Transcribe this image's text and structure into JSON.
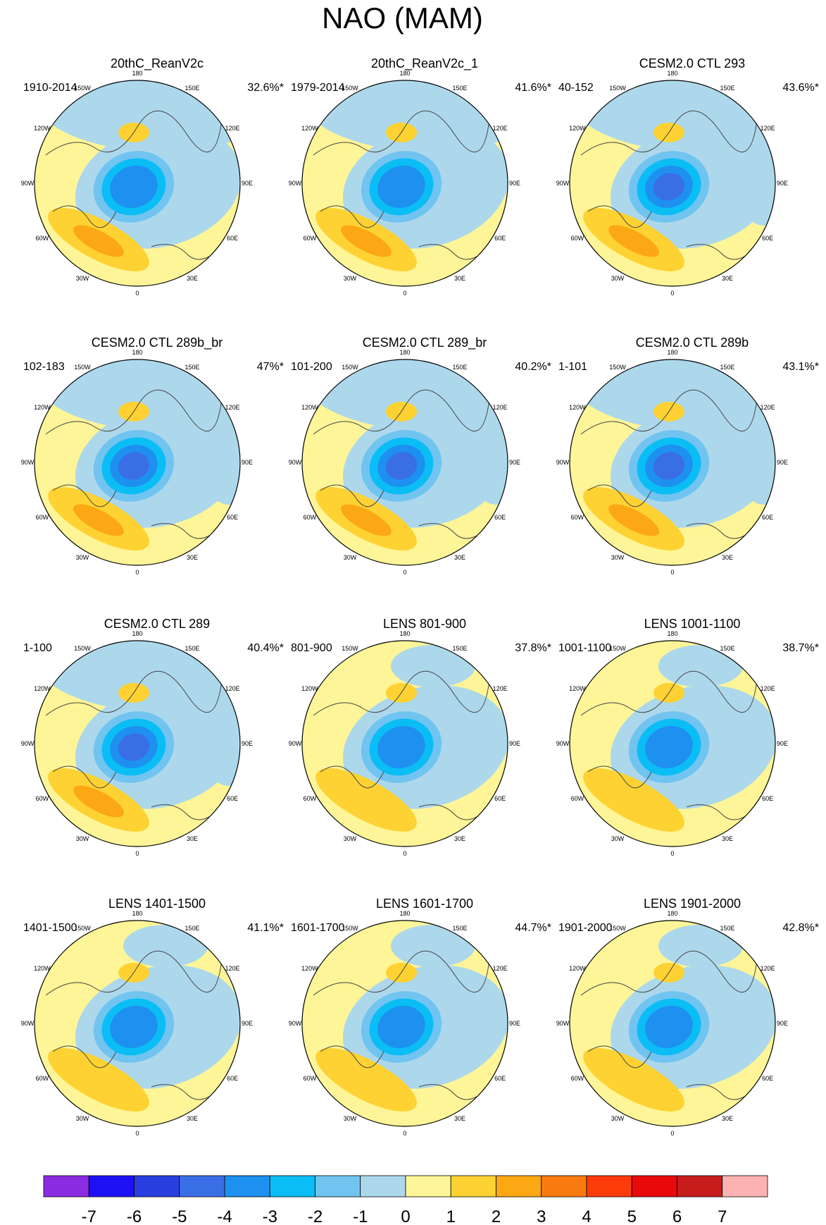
{
  "title": "NAO (MAM)",
  "palette": [
    "#8b2be2",
    "#1e10f5",
    "#2a3fe0",
    "#3a6ee6",
    "#1d90f0",
    "#0bbdf5",
    "#72c4f0",
    "#add8ec",
    "#fdf597",
    "#fed232",
    "#fca714",
    "#f97a0f",
    "#fb3b0a",
    "#e80a0a",
    "#c71c1c",
    "#fcb2b2"
  ],
  "levels": [
    "-7",
    "-6",
    "-5",
    "-4",
    "-3",
    "-2",
    "-1",
    "0",
    "1",
    "2",
    "3",
    "4",
    "5",
    "6",
    "7"
  ],
  "lon_labels": {
    "top": "180",
    "bottom": "0",
    "upper_left": "150W",
    "upper_right": "150E",
    "left_upper": "120W",
    "right_upper": "120E",
    "left": "90W",
    "right": "90E",
    "left_lower": "60W",
    "right_lower": "60E",
    "lower_left": "30W",
    "lower_right": "30E"
  },
  "panels": [
    {
      "title": "20thC_ReanV2c",
      "period": "1910-2014",
      "pct": "32.6%*",
      "pattern": "reanalysis"
    },
    {
      "title": "20thC_ReanV2c_1",
      "period": "1979-2014",
      "pct": "41.6%*",
      "pattern": "reanalysis"
    },
    {
      "title": "CESM2.0 CTL 293",
      "period": "40-152",
      "pct": "43.6%*",
      "pattern": "strong"
    },
    {
      "title": "CESM2.0 CTL 289b_br",
      "period": "102-183",
      "pct": "47%*",
      "pattern": "strong"
    },
    {
      "title": "CESM2.0 CTL 289_br",
      "period": "101-200",
      "pct": "40.2%*",
      "pattern": "strong"
    },
    {
      "title": "CESM2.0 CTL 289b",
      "period": "1-101",
      "pct": "43.1%*",
      "pattern": "strong"
    },
    {
      "title": "CESM2.0 CTL 289",
      "period": "1-100",
      "pct": "40.4%*",
      "pattern": "strong"
    },
    {
      "title": "LENS 801-900",
      "period": "801-900",
      "pct": "37.8%*",
      "pattern": "lens"
    },
    {
      "title": "LENS 1001-1100",
      "period": "1001-1100",
      "pct": "38.7%*",
      "pattern": "lens"
    },
    {
      "title": "LENS 1401-1500",
      "period": "1401-1500",
      "pct": "41.1%*",
      "pattern": "lens"
    },
    {
      "title": "LENS 1601-1700",
      "period": "1601-1700",
      "pct": "44.7%*",
      "pattern": "lens"
    },
    {
      "title": "LENS 1901-2000",
      "period": "1901-2000",
      "pct": "42.8%*",
      "pattern": "lens"
    }
  ]
}
